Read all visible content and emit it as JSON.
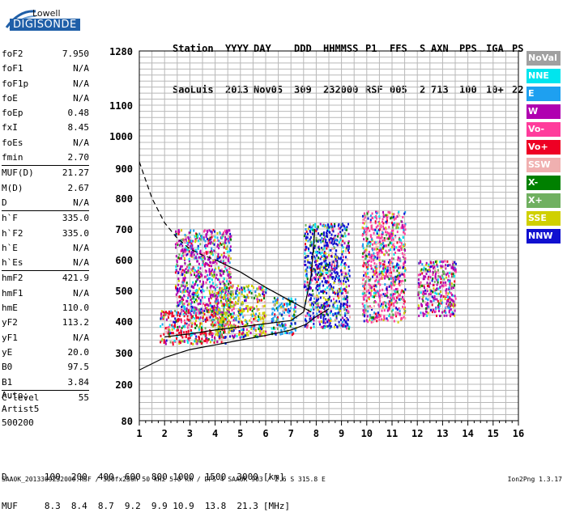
{
  "logo": {
    "line1": "Lowell",
    "line2": "DIGISONDE"
  },
  "header": {
    "labels": [
      "Station",
      "YYYY",
      "DAY",
      "DDD",
      "HHMMSS",
      "P1",
      "FFS",
      "S",
      "AXN",
      "PPS",
      "IGA",
      "PS"
    ],
    "values": [
      "SaoLuis",
      "2013",
      "Nov05",
      "309",
      "232000",
      "RSF",
      "005",
      "2",
      "713",
      "100",
      "10+",
      "22"
    ]
  },
  "params": [
    {
      "group": 1,
      "name": "foF2",
      "value": "7.950"
    },
    {
      "group": 1,
      "name": "foF1",
      "value": "N/A"
    },
    {
      "group": 1,
      "name": "foF1p",
      "value": "N/A"
    },
    {
      "group": 1,
      "name": "foE",
      "value": "N/A"
    },
    {
      "group": 1,
      "name": "foEp",
      "value": "0.48"
    },
    {
      "group": 1,
      "name": "fxI",
      "value": "8.45"
    },
    {
      "group": 1,
      "name": "foEs",
      "value": "N/A"
    },
    {
      "group": 1,
      "name": "fmin",
      "value": "2.70"
    },
    {
      "group": 2,
      "name": "MUF(D)",
      "value": "21.27"
    },
    {
      "group": 2,
      "name": "M(D)",
      "value": "2.67"
    },
    {
      "group": 2,
      "name": "D",
      "value": "N/A"
    },
    {
      "group": 3,
      "name": "h`F",
      "value": "335.0"
    },
    {
      "group": 3,
      "name": "h`F2",
      "value": "335.0"
    },
    {
      "group": 3,
      "name": "h`E",
      "value": "N/A"
    },
    {
      "group": 3,
      "name": "h`Es",
      "value": "N/A"
    },
    {
      "group": 4,
      "name": "hmF2",
      "value": "421.9"
    },
    {
      "group": 4,
      "name": "hmF1",
      "value": "N/A"
    },
    {
      "group": 4,
      "name": "hmE",
      "value": "110.0"
    },
    {
      "group": 4,
      "name": "yF2",
      "value": "113.2"
    },
    {
      "group": 4,
      "name": "yF1",
      "value": "N/A"
    },
    {
      "group": 4,
      "name": "yE",
      "value": "20.0"
    },
    {
      "group": 4,
      "name": "B0",
      "value": "97.5"
    },
    {
      "group": 4,
      "name": "B1",
      "value": "3.84"
    },
    {
      "group": 5,
      "name": "C-level",
      "value": "55"
    }
  ],
  "side_text": [
    "Auto:",
    "Artist5",
    "500200"
  ],
  "legend": [
    {
      "label": "NoVal",
      "color": "#a0a0a0"
    },
    {
      "label": "NNE",
      "color": "#00e5ee"
    },
    {
      "label": "E",
      "color": "#1ea0f0"
    },
    {
      "label": "W",
      "color": "#b000b0"
    },
    {
      "label": "Vo-",
      "color": "#ff3c9c"
    },
    {
      "label": "Vo+",
      "color": "#ee0024"
    },
    {
      "label": "SSW",
      "color": "#f0b0b0"
    },
    {
      "label": "X-",
      "color": "#008000"
    },
    {
      "label": "X+",
      "color": "#70b060"
    },
    {
      "label": "SSE",
      "color": "#d0d000"
    },
    {
      "label": "NNW",
      "color": "#1010d0"
    }
  ],
  "chart_data": {
    "type": "scatter",
    "title": "",
    "xlabel": "",
    "ylabel": "",
    "xlim": [
      1,
      16
    ],
    "ylim": [
      80,
      1280
    ],
    "y_scale": "nonlinear (ionogram height scale)",
    "x_ticks": [
      "1",
      "2",
      "3",
      "4",
      "5",
      "6",
      "7",
      "8",
      "9",
      "10",
      "11",
      "12",
      "13",
      "14",
      "15",
      "16"
    ],
    "y_ticks": [
      "80",
      "200",
      "300",
      "400",
      "500",
      "600",
      "700",
      "800",
      "900",
      "1000",
      "1100",
      "1280"
    ],
    "grid": true,
    "legend_position": "right",
    "echo_regions": [
      {
        "x": [
          1.8,
          4.4
        ],
        "y": [
          330,
          440
        ],
        "dominant": "Vo+"
      },
      {
        "x": [
          2.4,
          4.6
        ],
        "y": [
          430,
          700
        ],
        "dominant": "W"
      },
      {
        "x": [
          4.0,
          6.0
        ],
        "y": [
          350,
          520
        ],
        "dominant": "SSE"
      },
      {
        "x": [
          6.2,
          7.2
        ],
        "y": [
          360,
          480
        ],
        "dominant": "E"
      },
      {
        "x": [
          7.5,
          9.3
        ],
        "y": [
          380,
          720
        ],
        "dominant": "NNW"
      },
      {
        "x": [
          9.8,
          11.5
        ],
        "y": [
          400,
          760
        ],
        "dominant": "Vo-"
      },
      {
        "x": [
          12.0,
          13.5
        ],
        "y": [
          420,
          600
        ],
        "dominant": "W"
      }
    ],
    "lines": [
      {
        "style": "solid",
        "x": [
          1.0,
          2.0,
          3.0,
          4.0,
          5.0,
          6.0,
          7.0,
          7.6,
          8.0,
          8.5
        ],
        "y": [
          245,
          285,
          310,
          325,
          340,
          355,
          372,
          390,
          415,
          440
        ]
      },
      {
        "style": "solid",
        "x": [
          2.0,
          3.0,
          4.0,
          5.0,
          6.0,
          7.0,
          7.5,
          7.8,
          7.95
        ],
        "y": [
          350,
          360,
          372,
          382,
          392,
          402,
          430,
          550,
          700
        ]
      },
      {
        "style": "dashed",
        "x": [
          1.0,
          1.5,
          2.0,
          2.5,
          3.0,
          3.5,
          4.0
        ],
        "y": [
          920,
          800,
          720,
          670,
          635,
          615,
          600
        ]
      },
      {
        "style": "solid",
        "x": [
          4.0,
          5.0,
          6.0,
          7.0,
          7.8
        ],
        "y": [
          600,
          560,
          510,
          465,
          430
        ]
      }
    ]
  },
  "bottom": {
    "d_label": "D",
    "d_values": [
      "100",
      "200",
      "400",
      "600",
      "800",
      "1000",
      "1500",
      "3000"
    ],
    "d_unit": "[km]",
    "muf_label": "MUF",
    "muf_values": [
      "8.3",
      "8.4",
      "8.7",
      "9.2",
      "9.9",
      "10.9",
      "13.8",
      "21.3"
    ],
    "muf_unit": "[MHz]"
  },
  "footer": "SAA0K_2013309232000.RSF / 300fx256h 50 kHz 5.0 km / DPS-4 SAA0K 903 / 2.6 S 315.8 E",
  "version": "Ion2Png 1.3.17"
}
